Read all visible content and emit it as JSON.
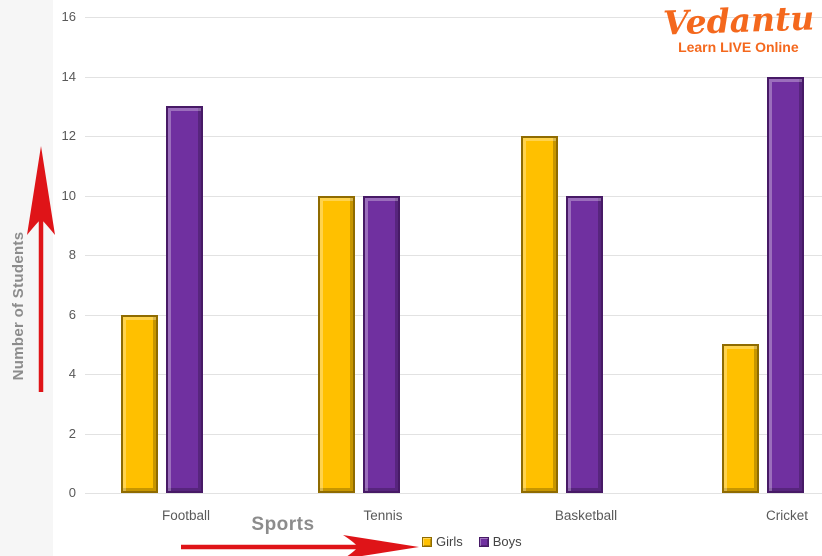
{
  "logo": {
    "brand": "Vedantu",
    "tagline": "Learn LIVE Online"
  },
  "colors": {
    "girls_fill": "#FFC000",
    "girls_border": "#8F6B00",
    "boys_fill": "#7030A0",
    "boys_border": "#471A66",
    "arrow_red": "#DF1418",
    "axis_label_gray": "#8C8C8C",
    "tick_text": "#595959",
    "gridline": "#E2E2E2",
    "logo_orange": "#F4681D",
    "left_strip": "#F6F6F6",
    "legend_text": "#444444"
  },
  "chart_data": {
    "type": "bar",
    "title": "",
    "categories": [
      "Football",
      "Tennis",
      "Basketball",
      "Cricket"
    ],
    "series": [
      {
        "name": "Girls",
        "color": "#FFC000",
        "values": [
          6,
          10,
          12,
          5
        ]
      },
      {
        "name": "Boys",
        "color": "#7030A0",
        "values": [
          13,
          10,
          10,
          14
        ]
      }
    ],
    "xlabel": "Sports",
    "ylabel": "Number of Students",
    "ylim": [
      0,
      16
    ],
    "ytick_step": 2,
    "ytick_labels": [
      "0",
      "2",
      "4",
      "6",
      "8",
      "10",
      "12",
      "14",
      "16"
    ],
    "grid": true,
    "legend_position": "bottom-center",
    "legend": [
      "Girls",
      "Boys"
    ]
  }
}
